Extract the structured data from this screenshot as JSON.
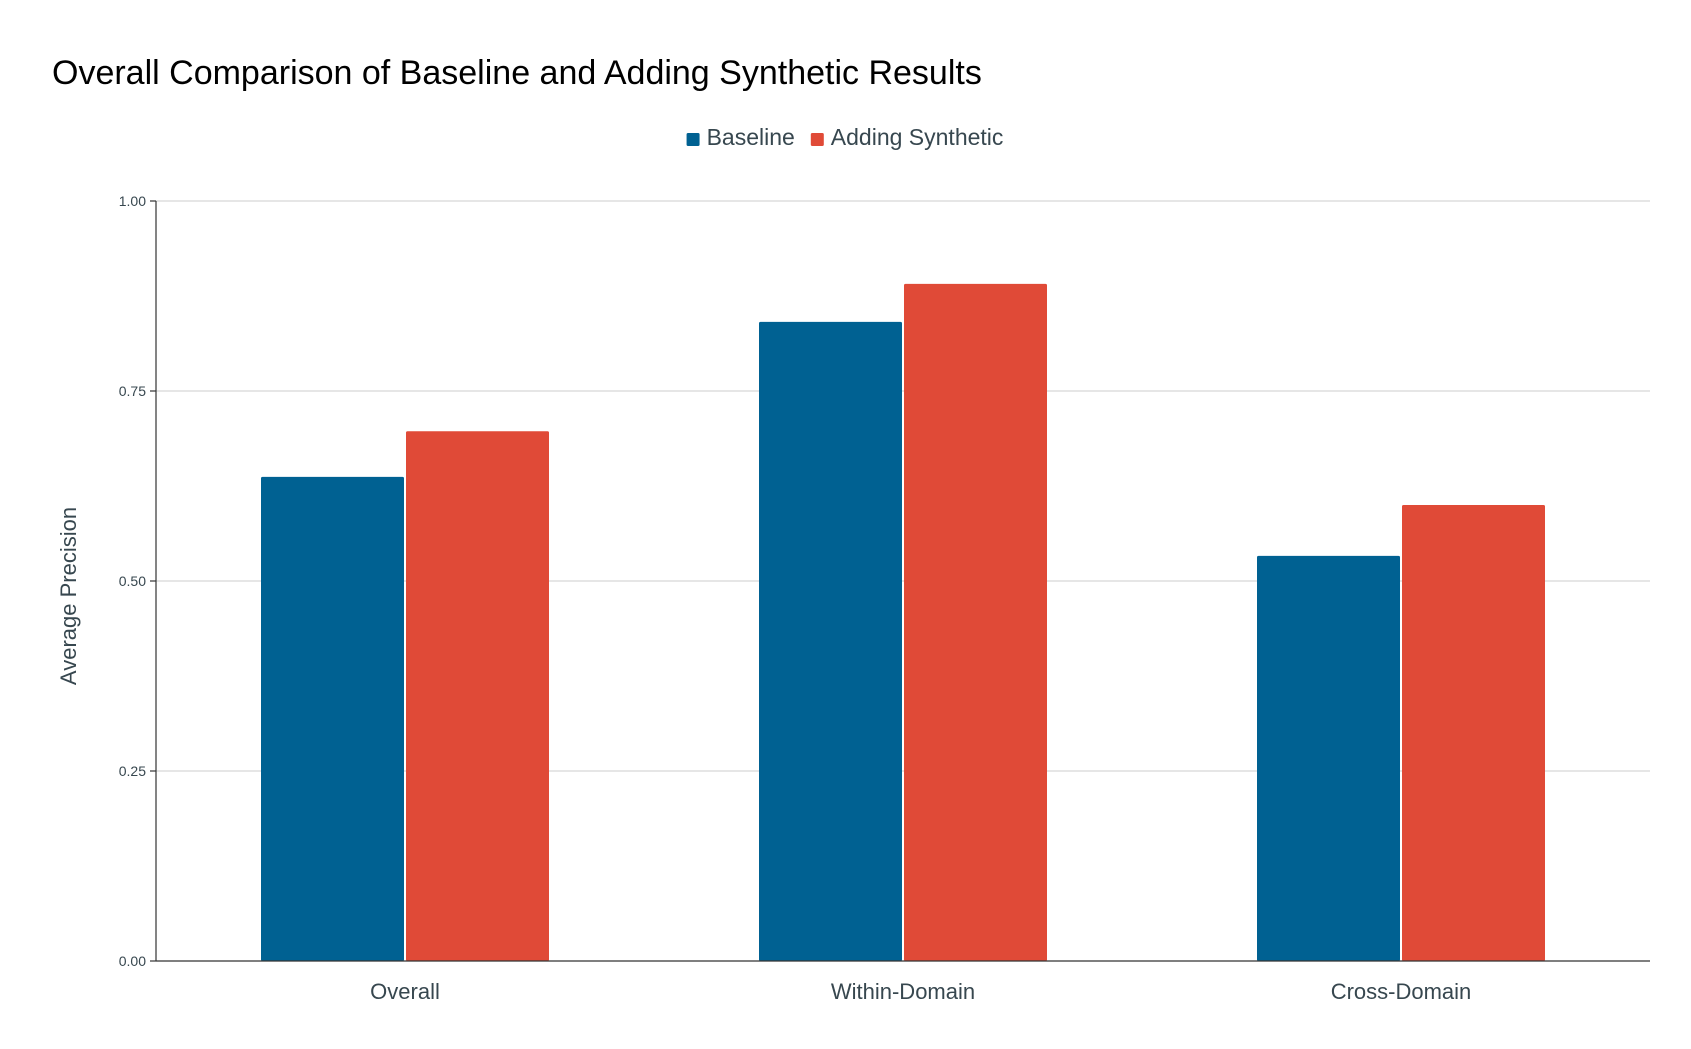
{
  "chart_data": {
    "type": "bar",
    "title": "Overall Comparison of Baseline and Adding Synthetic Results",
    "xlabel": "",
    "ylabel": "Average Precision",
    "categories": [
      "Overall",
      "Within-Domain",
      "Cross-Domain"
    ],
    "series": [
      {
        "name": "Baseline",
        "color": "#006192",
        "values": [
          0.637,
          0.841,
          0.533
        ]
      },
      {
        "name": "Adding Synthetic",
        "color": "#e04a37",
        "values": [
          0.697,
          0.891,
          0.6
        ]
      }
    ],
    "ylim": [
      0,
      1
    ],
    "yticks": [
      0,
      0.25,
      0.5,
      0.75,
      1.0
    ],
    "ytick_labels": [
      "0.00",
      "0.25",
      "0.50",
      "0.75",
      "1.00"
    ],
    "grid": true,
    "legend": "top-center"
  }
}
